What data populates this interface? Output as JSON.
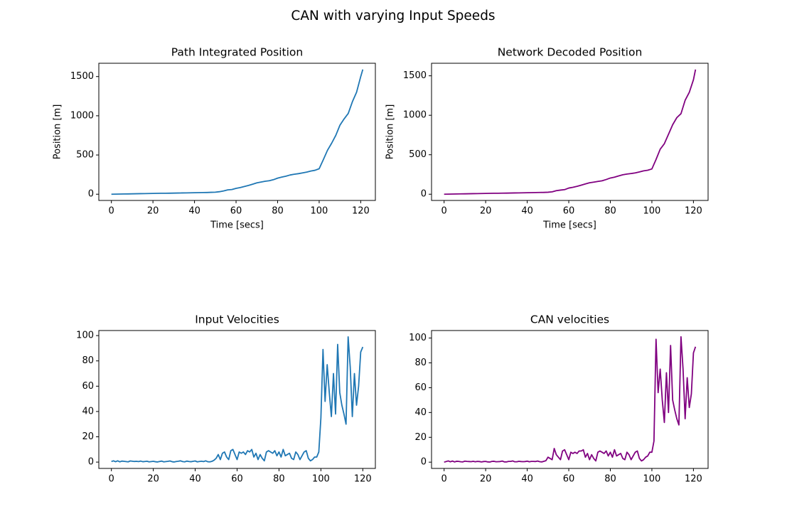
{
  "title": "CAN with varying Input Speeds",
  "chart_data": [
    {
      "type": "line",
      "title": "Path Integrated Position",
      "xlabel": "Time [secs]",
      "ylabel": "Position [m]",
      "color": "#1f77b4",
      "x": [
        0,
        2,
        4,
        6,
        8,
        10,
        12,
        14,
        16,
        18,
        20,
        22,
        24,
        26,
        28,
        30,
        32,
        34,
        36,
        38,
        40,
        42,
        44,
        46,
        48,
        50,
        52,
        54,
        56,
        58,
        60,
        62,
        64,
        66,
        68,
        70,
        72,
        74,
        76,
        78,
        80,
        82,
        84,
        86,
        88,
        90,
        92,
        94,
        96,
        98,
        100,
        102,
        104,
        106,
        108,
        110,
        112,
        114,
        116,
        118,
        120,
        121
      ],
      "values": [
        0,
        1,
        2,
        3,
        4,
        5,
        6,
        7,
        8,
        9,
        10,
        11,
        12,
        12,
        13,
        14,
        15,
        16,
        17,
        18,
        19,
        20,
        21,
        22,
        24,
        26,
        32,
        42,
        55,
        60,
        75,
        85,
        98,
        112,
        128,
        145,
        155,
        165,
        172,
        185,
        205,
        218,
        230,
        245,
        255,
        262,
        272,
        282,
        295,
        305,
        325,
        440,
        560,
        650,
        750,
        880,
        960,
        1030,
        1180,
        1300,
        1500,
        1590
      ],
      "xlim": [
        -6.05,
        127.05
      ],
      "ylim": [
        -79.5,
        1669.5
      ],
      "xticks": [
        0,
        20,
        40,
        60,
        80,
        100,
        120
      ],
      "yticks": [
        0,
        500,
        1000,
        1500
      ]
    },
    {
      "type": "line",
      "title": "Network Decoded Position",
      "xlabel": "Time [secs]",
      "ylabel": "Position [m]",
      "color": "#800080",
      "x": [
        0,
        2,
        4,
        6,
        8,
        10,
        12,
        14,
        16,
        18,
        20,
        22,
        24,
        26,
        28,
        30,
        32,
        34,
        36,
        38,
        40,
        42,
        44,
        46,
        48,
        50,
        52,
        54,
        56,
        58,
        60,
        62,
        64,
        66,
        68,
        70,
        72,
        74,
        76,
        78,
        80,
        82,
        84,
        86,
        88,
        90,
        92,
        94,
        96,
        98,
        100,
        102,
        104,
        106,
        108,
        110,
        112,
        114,
        116,
        118,
        120,
        121
      ],
      "values": [
        0,
        1,
        2,
        3,
        4,
        5,
        6,
        7,
        8,
        9,
        10,
        11,
        12,
        12,
        13,
        14,
        15,
        16,
        17,
        18,
        19,
        20,
        21,
        22,
        23,
        25,
        30,
        45,
        52,
        58,
        78,
        88,
        100,
        115,
        130,
        145,
        153,
        162,
        170,
        186,
        205,
        216,
        232,
        246,
        255,
        262,
        270,
        282,
        296,
        304,
        320,
        440,
        570,
        640,
        760,
        880,
        970,
        1020,
        1190,
        1290,
        1450,
        1580
      ],
      "xlim": [
        -6.05,
        127.05
      ],
      "ylim": [
        -79,
        1659
      ],
      "xticks": [
        0,
        20,
        40,
        60,
        80,
        100,
        120
      ],
      "yticks": [
        0,
        500,
        1000,
        1500
      ]
    },
    {
      "type": "line",
      "title": "Input Velocities",
      "color": "#1f77b4",
      "x": [
        0,
        1,
        2,
        3,
        4,
        5,
        6,
        7,
        8,
        9,
        10,
        11,
        12,
        13,
        14,
        15,
        16,
        17,
        18,
        19,
        20,
        21,
        22,
        23,
        24,
        25,
        26,
        27,
        28,
        29,
        30,
        31,
        32,
        33,
        34,
        35,
        36,
        37,
        38,
        39,
        40,
        41,
        42,
        43,
        44,
        45,
        46,
        47,
        48,
        49,
        50,
        51,
        52,
        53,
        54,
        55,
        56,
        57,
        58,
        59,
        60,
        61,
        62,
        63,
        64,
        65,
        66,
        67,
        68,
        69,
        70,
        71,
        72,
        73,
        74,
        75,
        76,
        77,
        78,
        79,
        80,
        81,
        82,
        83,
        84,
        85,
        86,
        87,
        88,
        89,
        90,
        91,
        92,
        93,
        94,
        95,
        96,
        97,
        98,
        99,
        100,
        101,
        102,
        103,
        104,
        105,
        106,
        107,
        108,
        109,
        110,
        111,
        112,
        113,
        114,
        115,
        116,
        117,
        118,
        119,
        120
      ],
      "values": [
        0.5,
        1,
        0.3,
        1,
        0.2,
        0.8,
        0.6,
        0.4,
        0.2,
        0.9,
        0.7,
        0.5,
        0.6,
        0.4,
        0.8,
        0.3,
        0.5,
        0.7,
        0.2,
        0.4,
        0.6,
        0.3,
        0.1,
        0.5,
        0.8,
        0.2,
        0.4,
        0.6,
        0.9,
        0.3,
        0.1,
        0.5,
        0.7,
        1,
        0.4,
        0.2,
        0.8,
        0.5,
        0.3,
        0.6,
        0.9,
        0.2,
        0.5,
        0.7,
        0.4,
        1,
        0.3,
        0.2,
        0.6,
        1.5,
        3,
        6,
        2,
        7,
        8,
        4,
        2,
        9,
        10,
        6,
        2,
        8,
        7,
        8,
        6,
        9,
        8,
        10,
        4,
        7,
        2,
        6,
        3,
        1,
        8,
        9,
        8,
        7,
        9,
        5,
        8,
        4,
        10,
        5,
        6,
        7,
        3,
        2,
        8,
        6,
        2,
        5,
        8,
        9,
        3,
        1,
        2,
        4,
        4,
        8,
        35,
        89,
        48,
        77,
        55,
        36,
        70,
        38,
        93,
        55,
        45,
        38,
        30,
        99,
        75,
        36,
        70,
        45,
        60,
        87,
        91
      ],
      "xlim": [
        -6,
        126
      ],
      "ylim": [
        -5,
        104
      ],
      "xticks": [
        0,
        20,
        40,
        60,
        80,
        100,
        120
      ],
      "yticks": [
        0,
        20,
        40,
        60,
        80,
        100
      ]
    },
    {
      "type": "line",
      "title": "CAN velocities",
      "color": "#800080",
      "x": [
        0,
        1,
        2,
        3,
        4,
        5,
        6,
        7,
        8,
        9,
        10,
        11,
        12,
        13,
        14,
        15,
        16,
        17,
        18,
        19,
        20,
        21,
        22,
        23,
        24,
        25,
        26,
        27,
        28,
        29,
        30,
        31,
        32,
        33,
        34,
        35,
        36,
        37,
        38,
        39,
        40,
        41,
        42,
        43,
        44,
        45,
        46,
        47,
        48,
        49,
        50,
        51,
        52,
        53,
        54,
        55,
        56,
        57,
        58,
        59,
        60,
        61,
        62,
        63,
        64,
        65,
        66,
        67,
        68,
        69,
        70,
        71,
        72,
        73,
        74,
        75,
        76,
        77,
        78,
        79,
        80,
        81,
        82,
        83,
        84,
        85,
        86,
        87,
        88,
        89,
        90,
        91,
        92,
        93,
        94,
        95,
        96,
        97,
        98,
        99,
        100,
        101,
        102,
        103,
        104,
        105,
        106,
        107,
        108,
        109,
        110,
        111,
        112,
        113,
        114,
        115,
        116,
        117,
        118,
        119,
        120,
        121
      ],
      "values": [
        0,
        0.5,
        1,
        0.3,
        0.9,
        0.2,
        0.7,
        0.6,
        0.3,
        0.2,
        0.8,
        0.6,
        0.5,
        0.4,
        0.7,
        0.3,
        0.6,
        0.5,
        0.2,
        0.5,
        0.6,
        0.2,
        0.1,
        0.6,
        0.7,
        0.3,
        0.4,
        0.5,
        0.9,
        0.2,
        0.2,
        0.6,
        0.6,
        1,
        0.3,
        0.3,
        0.7,
        0.5,
        0.4,
        0.5,
        0.8,
        0.3,
        0.6,
        0.6,
        0.5,
        0.9,
        0.4,
        0.2,
        0.7,
        1.2,
        4,
        3,
        2,
        11,
        6,
        4,
        2,
        9,
        10,
        6,
        2,
        8,
        7,
        8,
        7,
        9,
        9,
        10,
        4,
        7,
        2,
        6,
        3,
        1,
        8,
        9,
        8,
        7,
        9,
        5,
        8,
        4,
        10,
        5,
        6,
        7,
        3,
        2,
        8,
        6,
        2,
        5,
        8,
        9,
        3,
        1,
        2,
        4,
        5,
        8,
        8,
        17,
        99,
        56,
        75,
        50,
        32,
        72,
        40,
        94,
        50,
        42,
        35,
        30,
        101,
        75,
        35,
        68,
        44,
        55,
        88,
        93
      ],
      "xlim": [
        -6.05,
        127.05
      ],
      "ylim": [
        -5.05,
        106.05
      ],
      "xticks": [
        0,
        20,
        40,
        60,
        80,
        100,
        120
      ],
      "yticks": [
        0,
        20,
        40,
        60,
        80,
        100
      ]
    }
  ]
}
